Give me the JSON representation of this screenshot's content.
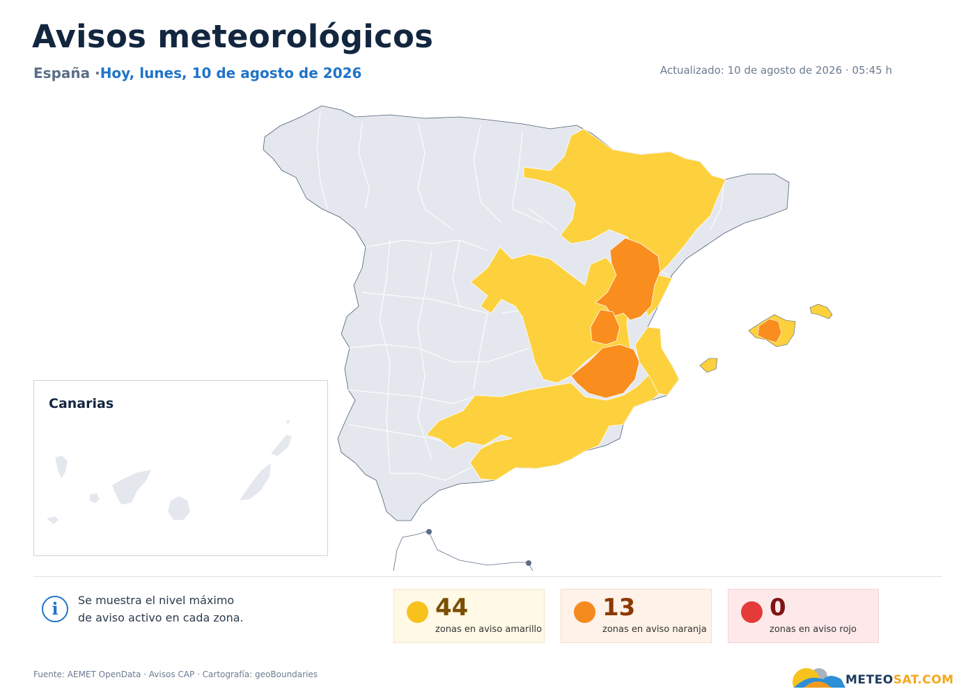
{
  "header": {
    "title": "Avisos meteorológicos",
    "country": "España",
    "separator": " ·",
    "date": "Hoy, lunes, 10 de agosto de 2026",
    "updated": "Actualizado: 10 de agosto de 2026 · 05:45 h"
  },
  "inset": {
    "title": "Canarias"
  },
  "info": {
    "line1": "Se muestra el nivel máximo",
    "line2": "de aviso activo en cada zona."
  },
  "summary": [
    {
      "level": "amarillo",
      "count": "44",
      "label": "zonas en aviso amarillo",
      "color": "#f8c21c"
    },
    {
      "level": "naranja",
      "count": "13",
      "label": "zonas en aviso naranja",
      "color": "#f58a1f"
    },
    {
      "level": "rojo",
      "count": "0",
      "label": "zonas en aviso rojo",
      "color": "#e53a3a"
    }
  ],
  "colors": {
    "no_warning": "#e4e8ee",
    "yellow": "#fdd13e",
    "orange": "#f98e1f",
    "red": "#e53a3a",
    "title": "#13263f",
    "accent": "#1f74c9"
  },
  "footer": {
    "source": "Fuente: AEMET OpenData · Avisos CAP · Cartografía: geoBoundaries"
  },
  "logo": {
    "text_a": "METEO",
    "text_b": "SAT.COM"
  }
}
